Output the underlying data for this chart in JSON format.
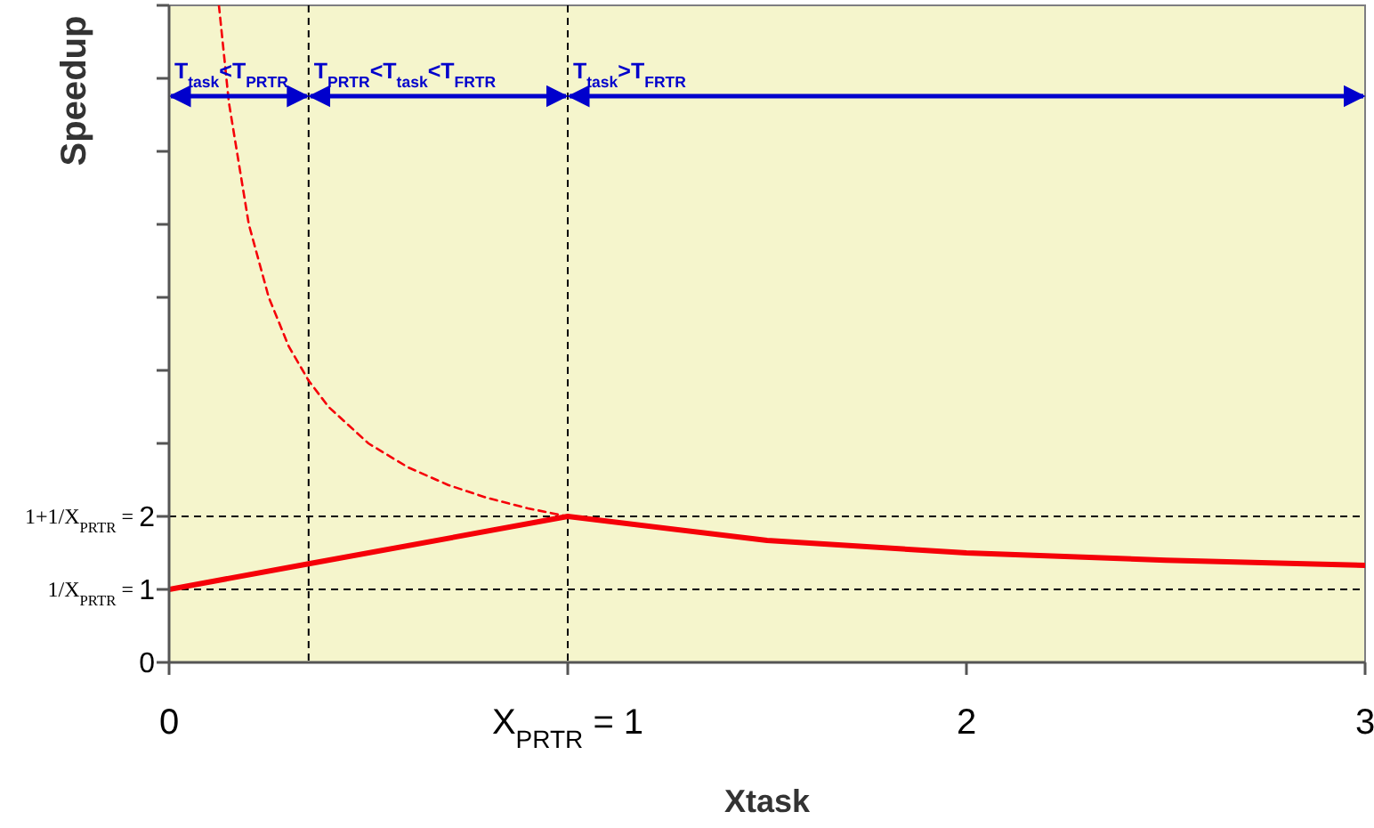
{
  "chart_data": {
    "type": "line",
    "xlabel": "Xtask",
    "ylabel": "Speedup",
    "xlim": [
      0,
      3
    ],
    "xticks": [
      0,
      {
        "value": 1,
        "label": "X$_{PRTR}$ = 1"
      },
      2,
      3
    ],
    "ylim": [
      0,
      9
    ],
    "yticks": [
      0,
      1,
      2,
      {
        "value": 3,
        "label": null
      },
      {
        "value": 4,
        "label": null
      },
      {
        "value": 5,
        "label": null
      },
      {
        "value": 6,
        "label": null
      },
      {
        "value": 7,
        "label": null
      },
      {
        "value": 8,
        "label": null
      },
      {
        "value": 9,
        "label": null
      }
    ],
    "series": [
      {
        "color": "#ff0000",
        "line_style": "solid",
        "x": [
          0,
          0.35,
          1,
          1.5,
          2,
          2.5,
          3
        ],
        "values": [
          1,
          1.35,
          2,
          1.67,
          1.5,
          1.4,
          1.33
        ]
      },
      {
        "color": "#ff0000",
        "line_style": "dashed",
        "x": [
          0.125,
          0.15,
          0.2,
          0.25,
          0.3,
          0.35,
          0.4,
          0.5,
          0.6,
          0.7,
          0.8,
          0.9,
          1
        ],
        "values": [
          9,
          7.67,
          6,
          5,
          4.33,
          3.86,
          3.5,
          3,
          2.67,
          2.43,
          2.25,
          2.11,
          2
        ]
      }
    ],
    "ref_lines": [
      {
        "axis": "y",
        "value": 1,
        "label": "1/X$_{PRTR}$ =",
        "color": "#000000",
        "line_style": "dashed"
      },
      {
        "axis": "y",
        "value": 2,
        "label": "1+1/X$_{PRTR}$ =",
        "color": "#000000",
        "line_style": "dashed"
      },
      {
        "axis": "x",
        "value": 0.35,
        "color": "#000000",
        "line_style": "dashed"
      },
      {
        "axis": "x",
        "value": 1,
        "color": "#000000",
        "line_style": "dashed"
      }
    ],
    "bands": [
      {
        "axis": "x",
        "from": 0,
        "to": 0.35,
        "label": "T$_{task}$<T$_{PRTR}$",
        "color": "#0000cc"
      },
      {
        "axis": "x",
        "from": 0.35,
        "to": 1,
        "label": "T$_{PRTR}$<T$_{task}$<T$_{FRTR}$",
        "color": "#0000cc"
      },
      {
        "axis": "x",
        "from": 1,
        "to": 3,
        "label": "T$_{task}$>T$_{FRTR}$",
        "color": "#0000cc"
      }
    ],
    "grid": false
  }
}
